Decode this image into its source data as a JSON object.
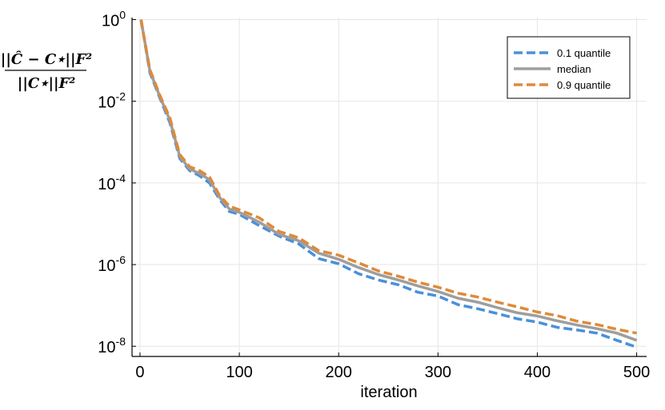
{
  "chart_data": {
    "type": "line",
    "title": "",
    "xlabel": "iteration",
    "ylabel": {
      "numerator": "||Ĉ − C⋆||F²",
      "denominator": "||C⋆||F²"
    },
    "xlim": [
      -8,
      510
    ],
    "ylim_log10": [
      -8.25,
      0.05
    ],
    "yscale": "log",
    "x_ticks": [
      0,
      100,
      200,
      300,
      400,
      500
    ],
    "x_tick_labels": [
      "0",
      "100",
      "200",
      "300",
      "400",
      "500"
    ],
    "y_ticks_exponent": [
      0,
      -2,
      -4,
      -6,
      -8
    ],
    "y_tick_labels": [
      {
        "base": "10",
        "exp": "0"
      },
      {
        "base": "10",
        "exp": "-2"
      },
      {
        "base": "10",
        "exp": "-4"
      },
      {
        "base": "10",
        "exp": "-6"
      },
      {
        "base": "10",
        "exp": "-8"
      }
    ],
    "grid": true,
    "legend_position": "top-right",
    "x": [
      1,
      10,
      20,
      30,
      40,
      50,
      60,
      70,
      80,
      90,
      100,
      120,
      140,
      160,
      180,
      200,
      220,
      240,
      260,
      280,
      300,
      320,
      340,
      360,
      380,
      400,
      420,
      440,
      460,
      480,
      500
    ],
    "series": [
      {
        "name": "0.1 quantile",
        "color": "#4a90d9",
        "dash": true,
        "values": [
          1.0,
          0.05,
          0.012,
          0.003,
          0.0004,
          0.0002,
          0.00015,
          0.0001,
          4e-05,
          2e-05,
          1.7e-05,
          9e-06,
          5e-06,
          3.2e-06,
          1.4e-06,
          1.05e-06,
          6e-07,
          4.2e-07,
          3.2e-07,
          2.1e-07,
          1.7e-07,
          1.05e-07,
          8.3e-08,
          6.3e-08,
          4.7e-08,
          3.9e-08,
          2.9e-08,
          2.5e-08,
          2.1e-08,
          1.4e-08,
          9.5e-09
        ]
      },
      {
        "name": "median",
        "color": "#9e9e9e",
        "dash": false,
        "values": [
          1.0,
          0.055,
          0.013,
          0.0035,
          0.00045,
          0.00022,
          0.00017,
          0.00012,
          4.5e-05,
          2.3e-05,
          1.9e-05,
          1.1e-05,
          5.5e-06,
          3.8e-06,
          1.9e-06,
          1.35e-06,
          8.5e-07,
          5.7e-07,
          4.2e-07,
          3e-07,
          2.2e-07,
          1.5e-07,
          1.2e-07,
          8.8e-08,
          6.6e-08,
          5.5e-08,
          4.2e-08,
          3.3e-08,
          2.7e-08,
          2.1e-08,
          1.4e-08
        ]
      },
      {
        "name": "0.9 quantile",
        "color": "#de8a3a",
        "dash": true,
        "values": [
          1.0,
          0.06,
          0.014,
          0.004,
          0.0005,
          0.00025,
          0.0002,
          0.00014,
          5e-05,
          2.7e-05,
          2.2e-05,
          1.4e-05,
          6.5e-06,
          4.5e-06,
          2.2e-06,
          1.7e-06,
          1.1e-06,
          7e-07,
          5.2e-07,
          3.7e-07,
          2.8e-07,
          2e-07,
          1.6e-07,
          1.2e-07,
          9.2e-08,
          6.9e-08,
          5.6e-08,
          4.1e-08,
          3.4e-08,
          2.6e-08,
          2.1e-08
        ]
      }
    ]
  }
}
